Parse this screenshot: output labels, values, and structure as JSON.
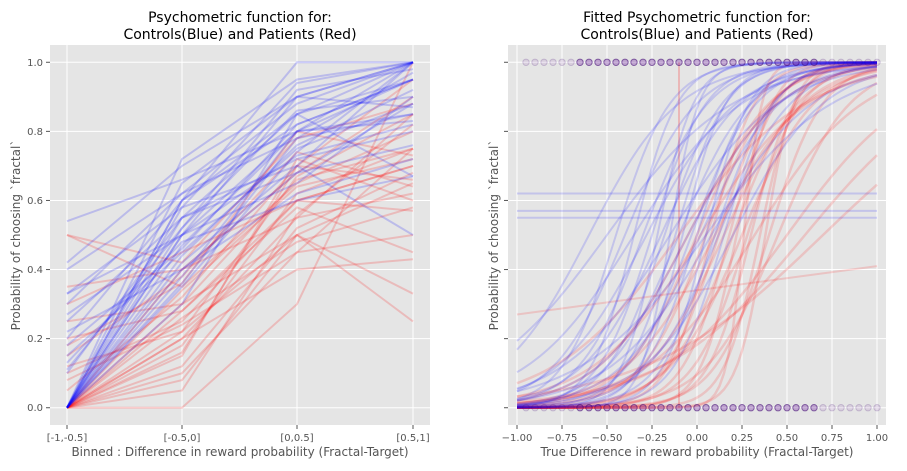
{
  "colors": {
    "background": "#e5e5e5",
    "grid": "#ffffff",
    "controls": "#0000ff",
    "patients": "#ff0000",
    "text": "#555555"
  },
  "chart_data": [
    {
      "type": "line",
      "title": "Psychometric function for:\nControls(Blue) and Patients (Red)",
      "xlabel": "Binned : Difference in reward probability (Fractal-Target)",
      "ylabel": "Probability of choosing `fractal`",
      "categories": [
        "[-1,-0.5]",
        "[-0.5,0]",
        "[0,0.5]",
        "[0.5,1]"
      ],
      "ylim": [
        -0.05,
        1.05
      ],
      "yticks": [
        "0.0",
        "0.2",
        "0.4",
        "0.6",
        "0.8",
        "1.0"
      ],
      "grid": true,
      "series_groups": [
        {
          "name": "Controls",
          "color": "#0000ff"
        },
        {
          "name": "Patients",
          "color": "#ff0000"
        }
      ],
      "controls_lines": [
        [
          0.0,
          0.72,
          0.95,
          1.0
        ],
        [
          0.0,
          0.65,
          0.9,
          1.0
        ],
        [
          0.0,
          0.6,
          1.0,
          1.0
        ],
        [
          0.1,
          0.55,
          0.85,
          0.95
        ],
        [
          0.33,
          0.5,
          0.8,
          1.0
        ],
        [
          0.0,
          0.5,
          0.9,
          1.0
        ],
        [
          0.15,
          0.45,
          0.75,
          0.88
        ],
        [
          0.0,
          0.42,
          0.7,
          1.0
        ],
        [
          0.2,
          0.6,
          0.85,
          0.67
        ],
        [
          0.0,
          0.38,
          0.8,
          0.95
        ],
        [
          0.4,
          0.62,
          0.78,
          0.85
        ],
        [
          0.0,
          0.5,
          0.65,
          0.9
        ],
        [
          0.25,
          0.55,
          0.72,
          0.8
        ],
        [
          0.0,
          0.3,
          0.85,
          1.0
        ],
        [
          0.13,
          0.48,
          0.6,
          0.67
        ],
        [
          0.0,
          0.52,
          0.92,
          0.98
        ],
        [
          0.33,
          0.58,
          0.7,
          0.5
        ],
        [
          0.0,
          0.44,
          0.76,
          0.92
        ],
        [
          0.22,
          0.4,
          0.68,
          0.88
        ],
        [
          0.0,
          0.6,
          0.82,
          0.95
        ],
        [
          0.54,
          0.66,
          0.8,
          0.83
        ],
        [
          0.0,
          0.35,
          0.74,
          1.0
        ],
        [
          0.11,
          0.52,
          0.86,
          0.9
        ],
        [
          0.0,
          0.47,
          0.8,
          0.85
        ],
        [
          0.3,
          0.62,
          0.88,
          1.0
        ],
        [
          0.0,
          0.55,
          0.68,
          0.76
        ],
        [
          0.42,
          0.7,
          0.9,
          0.87
        ],
        [
          0.0,
          0.4,
          0.62,
          0.72
        ],
        [
          0.18,
          0.46,
          0.82,
          0.95
        ],
        [
          0.0,
          0.58,
          0.94,
          1.0
        ],
        [
          0.27,
          0.5,
          0.73,
          0.82
        ],
        [
          0.0,
          0.36,
          0.78,
          0.97
        ]
      ],
      "patients_lines": [
        [
          0.0,
          0.0,
          0.3,
          1.0
        ],
        [
          0.0,
          0.1,
          0.45,
          0.75
        ],
        [
          0.0,
          0.2,
          0.55,
          0.85
        ],
        [
          0.1,
          0.25,
          0.6,
          0.7
        ],
        [
          0.0,
          0.3,
          0.5,
          0.33
        ],
        [
          0.5,
          0.35,
          0.65,
          0.8
        ],
        [
          0.0,
          0.15,
          0.72,
          0.6
        ],
        [
          0.12,
          0.22,
          0.5,
          0.25
        ],
        [
          0.0,
          0.4,
          0.68,
          0.9
        ],
        [
          0.2,
          0.28,
          0.58,
          0.45
        ],
        [
          0.0,
          0.18,
          0.62,
          0.75
        ],
        [
          0.05,
          0.32,
          0.7,
          0.66
        ],
        [
          0.0,
          0.26,
          0.48,
          0.58
        ],
        [
          0.3,
          0.45,
          0.6,
          0.7
        ],
        [
          0.0,
          0.05,
          0.56,
          0.82
        ],
        [
          0.15,
          0.38,
          0.74,
          0.64
        ],
        [
          0.0,
          0.2,
          0.4,
          0.43
        ],
        [
          0.25,
          0.3,
          0.66,
          0.75
        ],
        [
          0.0,
          0.12,
          0.52,
          0.68
        ],
        [
          0.5,
          0.42,
          0.78,
          0.88
        ],
        [
          0.0,
          0.34,
          0.64,
          0.72
        ],
        [
          0.08,
          0.24,
          0.45,
          0.5
        ],
        [
          0.0,
          0.16,
          0.7,
          0.95
        ],
        [
          0.35,
          0.4,
          0.55,
          0.62
        ],
        [
          0.0,
          0.28,
          0.6,
          0.57
        ],
        [
          0.18,
          0.36,
          0.8,
          0.73
        ],
        [
          0.0,
          0.08,
          0.5,
          0.65
        ],
        [
          0.0,
          0.22,
          0.67,
          0.85
        ]
      ]
    },
    {
      "type": "line",
      "title": "Fitted Psychometric function for:\nControls(Blue) and Patients (Red)",
      "xlabel": "True Difference in reward probability (Fractal-Target)",
      "ylabel": "Probability of choosing `fractal`",
      "xlim": [
        -1.05,
        1.05
      ],
      "ylim": [
        -0.05,
        1.05
      ],
      "xticks": [
        "−1.00",
        "−0.75",
        "−0.50",
        "−0.25",
        "0.00",
        "0.25",
        "0.50",
        "0.75",
        "1.00"
      ],
      "grid": true,
      "series_groups": [
        {
          "name": "Controls",
          "color": "#0000ff"
        },
        {
          "name": "Patients",
          "color": "#ff0000"
        }
      ],
      "controls_logistic": [
        {
          "mu": -0.45,
          "s": 0.15
        },
        {
          "mu": -0.4,
          "s": 0.2
        },
        {
          "mu": -0.35,
          "s": 0.12
        },
        {
          "mu": -0.3,
          "s": 0.18
        },
        {
          "mu": -0.28,
          "s": 0.25
        },
        {
          "mu": -0.25,
          "s": 0.15
        },
        {
          "mu": -0.22,
          "s": 0.1
        },
        {
          "mu": -0.2,
          "s": 0.22
        },
        {
          "mu": -0.18,
          "s": 0.16
        },
        {
          "mu": -0.15,
          "s": 0.3
        },
        {
          "mu": -0.12,
          "s": 0.14
        },
        {
          "mu": -0.1,
          "s": 0.2
        },
        {
          "mu": -0.08,
          "s": 0.12
        },
        {
          "mu": -0.05,
          "s": 0.25
        },
        {
          "mu": -0.03,
          "s": 0.18
        },
        {
          "mu": 0.0,
          "s": 0.15
        },
        {
          "mu": 0.02,
          "s": 0.22
        },
        {
          "mu": 0.05,
          "s": 0.12
        },
        {
          "mu": 0.08,
          "s": 0.28
        },
        {
          "mu": 0.1,
          "s": 0.16
        },
        {
          "mu": 0.12,
          "s": 0.2
        },
        {
          "mu": 0.15,
          "s": 0.14
        },
        {
          "mu": -0.35,
          "s": 0.3
        },
        {
          "mu": -0.6,
          "s": 0.25
        },
        {
          "mu": -0.5,
          "s": 0.35
        },
        {
          "mu": 0.2,
          "s": 0.25
        },
        {
          "mu": -0.15,
          "s": 0.08
        },
        {
          "mu": 0.05,
          "s": 0.35
        }
      ],
      "patients_logistic": [
        {
          "mu": 0.35,
          "s": 0.1
        },
        {
          "mu": 0.3,
          "s": 0.12
        },
        {
          "mu": 0.28,
          "s": 0.15
        },
        {
          "mu": 0.25,
          "s": 0.2
        },
        {
          "mu": 0.22,
          "s": 0.1
        },
        {
          "mu": 0.2,
          "s": 0.18
        },
        {
          "mu": 0.18,
          "s": 0.13
        },
        {
          "mu": 0.15,
          "s": 0.22
        },
        {
          "mu": 0.12,
          "s": 0.15
        },
        {
          "mu": 0.1,
          "s": 0.25
        },
        {
          "mu": 0.08,
          "s": 0.12
        },
        {
          "mu": 0.05,
          "s": 0.18
        },
        {
          "mu": 0.02,
          "s": 0.3
        },
        {
          "mu": 0.0,
          "s": 0.2
        },
        {
          "mu": -0.05,
          "s": 0.25
        },
        {
          "mu": 0.4,
          "s": 0.15
        },
        {
          "mu": 0.45,
          "s": 0.2
        },
        {
          "mu": 0.32,
          "s": 0.3
        },
        {
          "mu": -0.1,
          "s": 0.35
        },
        {
          "mu": 0.6,
          "s": 0.4
        },
        {
          "mu": 0.5,
          "s": 0.35
        },
        {
          "mu": 0.38,
          "s": 0.08
        },
        {
          "mu": 0.26,
          "s": 0.05
        },
        {
          "mu": 0.7,
          "s": 0.5
        }
      ],
      "controls_flat": [
        0.62,
        0.57,
        0.55
      ],
      "patients_flat": [
        {
          "y0": 0.27,
          "y1": 0.41
        }
      ],
      "patients_vertical_x": -0.1,
      "data_points_x": [
        -0.95,
        -0.9,
        -0.85,
        -0.8,
        -0.75,
        -0.7,
        -0.65,
        -0.6,
        -0.55,
        -0.5,
        -0.45,
        -0.4,
        -0.35,
        -0.3,
        -0.25,
        -0.2,
        -0.15,
        -0.1,
        -0.05,
        0.0,
        0.05,
        0.1,
        0.15,
        0.2,
        0.25,
        0.3,
        0.35,
        0.4,
        0.45,
        0.5,
        0.55,
        0.6,
        0.65,
        0.7,
        0.75,
        0.8,
        0.85,
        0.9,
        0.95,
        1.0
      ]
    }
  ]
}
